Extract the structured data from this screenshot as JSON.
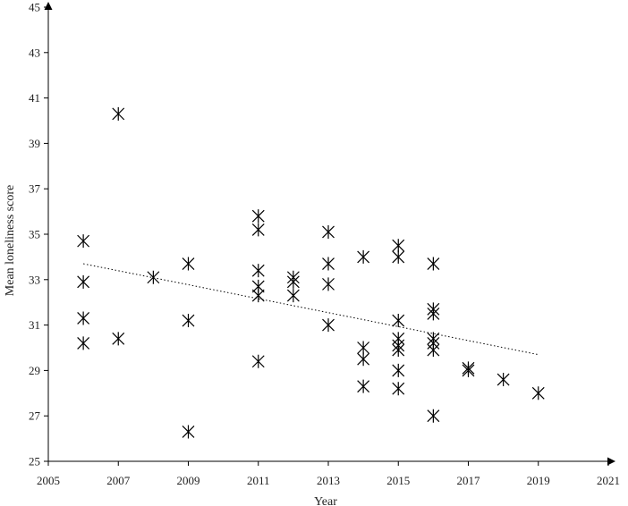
{
  "chart_data": {
    "type": "scatter",
    "title": "",
    "xlabel": "Year",
    "ylabel": "Mean loneliness score",
    "xlim": [
      2005,
      2021
    ],
    "ylim": [
      25,
      45
    ],
    "xticks": [
      2005,
      2007,
      2009,
      2011,
      2013,
      2015,
      2017,
      2019,
      2021
    ],
    "yticks": [
      25,
      27,
      29,
      31,
      33,
      35,
      37,
      39,
      41,
      43,
      45
    ],
    "marker": "asterisk",
    "grid": false,
    "legend": "none",
    "series": [
      {
        "points": [
          [
            2006,
            34.7
          ],
          [
            2006,
            32.9
          ],
          [
            2006,
            31.3
          ],
          [
            2006,
            30.2
          ],
          [
            2007,
            40.3
          ],
          [
            2007,
            30.4
          ],
          [
            2008,
            33.1
          ],
          [
            2009,
            33.7
          ],
          [
            2009,
            31.2
          ],
          [
            2009,
            26.3
          ],
          [
            2011,
            35.8
          ],
          [
            2011,
            35.2
          ],
          [
            2011,
            33.4
          ],
          [
            2011,
            32.7
          ],
          [
            2011,
            32.3
          ],
          [
            2011,
            29.4
          ],
          [
            2012,
            33.1
          ],
          [
            2012,
            32.9
          ],
          [
            2012,
            32.3
          ],
          [
            2013,
            35.1
          ],
          [
            2013,
            33.7
          ],
          [
            2013,
            32.8
          ],
          [
            2013,
            31.0
          ],
          [
            2014,
            34.0
          ],
          [
            2014,
            30.0
          ],
          [
            2014,
            29.5
          ],
          [
            2014,
            28.3
          ],
          [
            2015,
            34.5
          ],
          [
            2015,
            34.0
          ],
          [
            2015,
            31.2
          ],
          [
            2015,
            30.4
          ],
          [
            2015,
            30.1
          ],
          [
            2015,
            29.9
          ],
          [
            2015,
            29.0
          ],
          [
            2015,
            28.2
          ],
          [
            2016,
            33.7
          ],
          [
            2016,
            31.7
          ],
          [
            2016,
            31.5
          ],
          [
            2016,
            30.4
          ],
          [
            2016,
            30.2
          ],
          [
            2016,
            29.9
          ],
          [
            2016,
            27.0
          ],
          [
            2017,
            29.1
          ],
          [
            2017,
            29.0
          ],
          [
            2018,
            28.6
          ],
          [
            2019,
            28.0
          ]
        ]
      }
    ],
    "trendline": {
      "style": "dotted",
      "x": [
        2006,
        2019
      ],
      "y": [
        33.7,
        29.7
      ]
    }
  }
}
